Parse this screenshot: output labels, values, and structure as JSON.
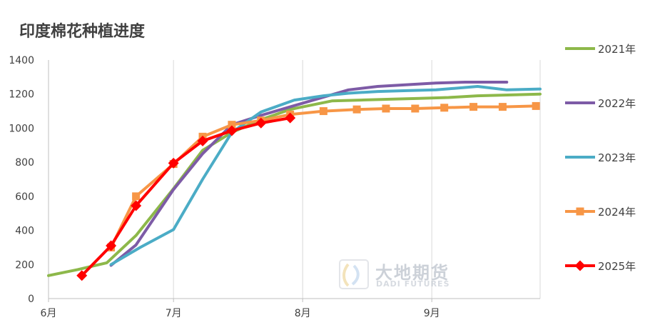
{
  "chart_data": {
    "type": "line",
    "title": "印度棉花种植进度",
    "xlabel": "",
    "ylabel": "",
    "x_ticks": [
      {
        "label": "6月",
        "day": 0
      },
      {
        "label": "7月",
        "day": 30
      },
      {
        "label": "8月",
        "day": 61
      },
      {
        "label": "9月",
        "day": 92
      }
    ],
    "xlim": [
      0,
      118
    ],
    "ylim": [
      0,
      1400
    ],
    "y_ticks": [
      0,
      200,
      400,
      600,
      800,
      1000,
      1200,
      1400
    ],
    "grid": "vertical",
    "legend_position": "right",
    "series": [
      {
        "name": "2021年",
        "color": "#8DB84A",
        "marker": "none",
        "x": [
          0,
          7,
          14,
          21,
          30,
          37,
          44,
          51,
          58,
          68,
          75,
          82,
          89,
          96,
          103,
          111,
          118
        ],
        "y": [
          135,
          170,
          210,
          370,
          645,
          870,
          975,
          1050,
          1110,
          1160,
          1165,
          1170,
          1175,
          1180,
          1190,
          1195,
          1200
        ]
      },
      {
        "name": "2022年",
        "color": "#7D5BA6",
        "marker": "none",
        "x": [
          15,
          21,
          30,
          37,
          44,
          51,
          58,
          65,
          72,
          79,
          86,
          93,
          100,
          110
        ],
        "y": [
          195,
          315,
          640,
          850,
          1020,
          1075,
          1125,
          1175,
          1225,
          1245,
          1255,
          1265,
          1270,
          1270
        ]
      },
      {
        "name": "2023年",
        "color": "#4BACC6",
        "marker": "none",
        "x": [
          15,
          22,
          30,
          37,
          44,
          51,
          59,
          66,
          72,
          79,
          86,
          93,
          103,
          110,
          118
        ],
        "y": [
          200,
          300,
          405,
          700,
          975,
          1095,
          1165,
          1190,
          1205,
          1215,
          1220,
          1225,
          1245,
          1225,
          1230
        ]
      },
      {
        "name": "2024年",
        "color": "#F79646",
        "marker": "square",
        "x": [
          15,
          21,
          30,
          37,
          44,
          51,
          58,
          66,
          74,
          81,
          88,
          95,
          102,
          109,
          117
        ],
        "y": [
          300,
          600,
          790,
          950,
          1020,
          1045,
          1080,
          1100,
          1110,
          1115,
          1115,
          1120,
          1125,
          1125,
          1130
        ]
      },
      {
        "name": "2025年",
        "color": "#FF0000",
        "marker": "diamond",
        "x": [
          8,
          15,
          21,
          30,
          37,
          44,
          51,
          58
        ],
        "y": [
          135,
          310,
          545,
          795,
          925,
          985,
          1030,
          1060
        ]
      }
    ]
  },
  "watermark": {
    "cn": "大地期货",
    "en": "DADI FUTURES"
  }
}
